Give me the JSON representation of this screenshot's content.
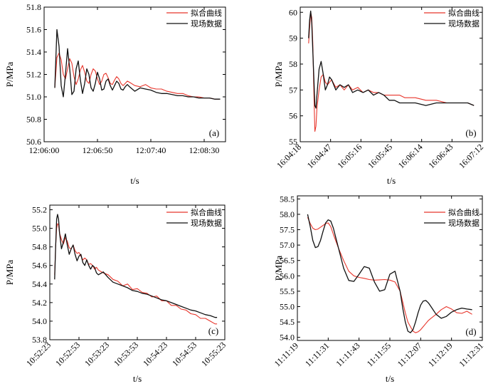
{
  "chart_data": [
    {
      "type": "line",
      "panel_label": "(a)",
      "xlabel": "t/s",
      "ylabel": "P/MPa",
      "x_ticks": [
        "12:06:00",
        "12:06:50",
        "12:07:40",
        "12:08:30"
      ],
      "x_tick_seconds": [
        0,
        50,
        100,
        150
      ],
      "xlim_seconds": [
        0,
        170
      ],
      "y_ticks": [
        "50.6",
        "50.8",
        "51.0",
        "51.2",
        "51.4",
        "51.6",
        "51.8"
      ],
      "ylim": [
        50.6,
        51.8
      ],
      "legend": "top-right",
      "series": [
        {
          "name": "拟合曲线",
          "color": "#e8362c",
          "x_seconds": [
            10,
            12,
            14,
            16,
            18,
            20,
            22,
            24,
            26,
            28,
            30,
            32,
            34,
            36,
            38,
            40,
            42,
            44,
            46,
            48,
            50,
            52,
            54,
            56,
            58,
            60,
            62,
            64,
            66,
            68,
            70,
            72,
            74,
            76,
            78,
            80,
            85,
            90,
            95,
            100,
            105,
            110,
            115,
            120,
            125,
            130,
            135,
            140,
            145,
            150,
            155,
            160,
            165
          ],
          "values": [
            51.08,
            51.35,
            51.39,
            51.33,
            51.2,
            51.16,
            51.25,
            51.34,
            51.3,
            51.18,
            51.11,
            51.16,
            51.24,
            51.28,
            51.22,
            51.14,
            51.12,
            51.2,
            51.25,
            51.23,
            51.16,
            51.11,
            51.14,
            51.2,
            51.21,
            51.17,
            51.12,
            51.11,
            51.15,
            51.18,
            51.16,
            51.12,
            51.1,
            51.12,
            51.14,
            51.13,
            51.1,
            51.09,
            51.11,
            51.08,
            51.07,
            51.07,
            51.05,
            51.04,
            51.03,
            51.03,
            51.01,
            51.0,
            51.0,
            50.99,
            50.99,
            50.98,
            50.98
          ]
        },
        {
          "name": "现场数据",
          "color": "#111111",
          "x_seconds": [
            10,
            12,
            14,
            16,
            18,
            20,
            22,
            24,
            26,
            28,
            30,
            32,
            34,
            36,
            38,
            40,
            42,
            44,
            46,
            48,
            50,
            52,
            54,
            56,
            58,
            60,
            62,
            64,
            66,
            68,
            70,
            72,
            74,
            76,
            78,
            80,
            85,
            90,
            95,
            100,
            105,
            110,
            115,
            120,
            125,
            130,
            135,
            140,
            145,
            150,
            155,
            160,
            165
          ],
          "values": [
            51.08,
            51.6,
            51.45,
            51.1,
            51.0,
            51.2,
            51.43,
            51.25,
            51.02,
            51.05,
            51.25,
            51.32,
            51.15,
            51.03,
            51.12,
            51.25,
            51.2,
            51.08,
            51.05,
            51.12,
            51.22,
            51.16,
            51.06,
            51.07,
            51.14,
            51.16,
            51.1,
            51.06,
            51.1,
            51.14,
            51.12,
            51.07,
            51.06,
            51.09,
            51.11,
            51.09,
            51.05,
            51.08,
            51.07,
            51.06,
            51.04,
            51.03,
            51.03,
            51.02,
            51.01,
            51.01,
            51.0,
            51.0,
            50.99,
            50.99,
            50.99,
            50.98,
            50.98
          ]
        }
      ]
    },
    {
      "type": "line",
      "panel_label": "(b)",
      "xlabel": "t/s",
      "ylabel": "P/MPa",
      "x_ticks": [
        "16:04:18",
        "16:04:47",
        "16:05:16",
        "16:05:45",
        "16:06:14",
        "16:06:43",
        "16:07:12"
      ],
      "x_tick_seconds": [
        0,
        29,
        58,
        87,
        116,
        145,
        174
      ],
      "xlim_seconds": [
        0,
        174
      ],
      "y_ticks": [
        "55",
        "56",
        "57",
        "58",
        "59",
        "60"
      ],
      "ylim": [
        55,
        60.2
      ],
      "legend": "top-right",
      "series": [
        {
          "name": "拟合曲线",
          "color": "#e8362c",
          "x_seconds": [
            8,
            9,
            10,
            11,
            12,
            13,
            14,
            15,
            16,
            18,
            20,
            22,
            24,
            26,
            28,
            30,
            34,
            38,
            42,
            46,
            50,
            55,
            60,
            65,
            70,
            75,
            80,
            85,
            90,
            95,
            100,
            110,
            120,
            130,
            140,
            150,
            160,
            166
          ],
          "values": [
            58.8,
            59.4,
            60.0,
            59.8,
            58.8,
            57.0,
            55.4,
            55.6,
            56.3,
            57.0,
            57.5,
            57.6,
            57.3,
            57.2,
            57.3,
            57.4,
            57.1,
            57.2,
            57.0,
            57.2,
            57.0,
            57.1,
            56.9,
            57.0,
            56.9,
            56.9,
            56.8,
            56.8,
            56.8,
            56.8,
            56.7,
            56.7,
            56.6,
            56.6,
            56.5,
            56.5,
            56.5,
            56.4
          ]
        },
        {
          "name": "现场数据",
          "color": "#111111",
          "x_seconds": [
            8,
            9,
            10,
            11,
            12,
            13,
            14,
            15,
            16,
            18,
            20,
            22,
            24,
            26,
            28,
            30,
            34,
            38,
            42,
            46,
            50,
            55,
            60,
            65,
            70,
            75,
            80,
            85,
            90,
            95,
            100,
            110,
            120,
            130,
            140,
            150,
            160,
            166
          ],
          "values": [
            59.0,
            59.7,
            60.05,
            59.6,
            58.5,
            57.5,
            56.4,
            56.3,
            56.8,
            57.8,
            58.1,
            57.6,
            57.0,
            57.2,
            57.5,
            57.4,
            57.0,
            57.2,
            57.1,
            57.2,
            56.9,
            57.0,
            56.9,
            57.0,
            56.8,
            56.9,
            56.8,
            56.6,
            56.6,
            56.5,
            56.5,
            56.5,
            56.4,
            56.5,
            56.5,
            56.5,
            56.5,
            56.4
          ]
        }
      ]
    },
    {
      "type": "line",
      "panel_label": "(c)",
      "xlabel": "t/s",
      "ylabel": "P/MPa",
      "x_ticks": [
        "10:52:23",
        "10:52:53",
        "10:53:23",
        "10:53:53",
        "10:54:23",
        "10:54:53",
        "10:55:23"
      ],
      "x_tick_seconds": [
        0,
        30,
        60,
        90,
        120,
        150,
        180
      ],
      "xlim_seconds": [
        0,
        180
      ],
      "y_ticks": [
        "53.8",
        "54.0",
        "54.2",
        "54.4",
        "54.6",
        "54.8",
        "55.0",
        "55.2"
      ],
      "ylim": [
        53.8,
        55.25
      ],
      "legend": "top-right",
      "series": [
        {
          "name": "拟合曲线",
          "color": "#e8362c",
          "x_seconds": [
            5,
            6,
            7,
            8,
            9,
            10,
            12,
            14,
            16,
            18,
            20,
            22,
            24,
            26,
            28,
            30,
            32,
            34,
            36,
            38,
            40,
            42,
            44,
            46,
            48,
            50,
            55,
            60,
            65,
            70,
            75,
            80,
            85,
            90,
            95,
            100,
            105,
            110,
            115,
            120,
            125,
            130,
            135,
            140,
            145,
            150,
            155,
            160,
            165,
            170,
            172
          ],
          "values": [
            54.5,
            54.8,
            55.0,
            55.05,
            55.04,
            54.95,
            54.88,
            54.83,
            54.9,
            54.86,
            54.79,
            54.78,
            54.82,
            54.76,
            54.73,
            54.74,
            54.7,
            54.66,
            54.68,
            54.66,
            54.61,
            54.62,
            54.6,
            54.56,
            54.58,
            54.55,
            54.52,
            54.5,
            54.45,
            54.43,
            54.38,
            54.4,
            54.34,
            54.35,
            54.31,
            54.3,
            54.26,
            54.27,
            54.22,
            54.22,
            54.17,
            54.17,
            54.13,
            54.12,
            54.08,
            54.07,
            54.03,
            54.03,
            54.0,
            53.97,
            53.97
          ]
        },
        {
          "name": "现场数据",
          "color": "#111111",
          "x_seconds": [
            5,
            6,
            7,
            8,
            9,
            10,
            12,
            14,
            16,
            18,
            20,
            22,
            24,
            26,
            28,
            30,
            32,
            34,
            36,
            38,
            40,
            42,
            44,
            46,
            48,
            50,
            55,
            60,
            65,
            70,
            75,
            80,
            85,
            90,
            95,
            100,
            105,
            110,
            115,
            120,
            125,
            130,
            135,
            140,
            145,
            150,
            155,
            160,
            165,
            170,
            172
          ],
          "values": [
            54.45,
            54.8,
            55.1,
            55.15,
            55.1,
            54.95,
            54.78,
            54.85,
            54.94,
            54.82,
            54.72,
            54.78,
            54.82,
            54.72,
            54.65,
            54.7,
            54.72,
            54.63,
            54.6,
            54.66,
            54.6,
            54.56,
            54.6,
            54.58,
            54.52,
            54.5,
            54.53,
            54.47,
            54.42,
            54.4,
            54.38,
            54.36,
            54.33,
            54.32,
            54.3,
            54.29,
            54.27,
            54.25,
            54.23,
            54.22,
            54.2,
            54.18,
            54.16,
            54.14,
            54.12,
            54.11,
            54.09,
            54.07,
            54.06,
            54.04,
            54.04
          ]
        }
      ]
    },
    {
      "type": "line",
      "panel_label": "(d)",
      "xlabel": "t/s",
      "ylabel": "P/MPa",
      "x_ticks": [
        "11:11:19",
        "11:11:31",
        "11:11:43",
        "11:11:55",
        "11:12:07",
        "11:12:19",
        "11:12:31"
      ],
      "x_tick_seconds": [
        0,
        12,
        24,
        36,
        48,
        60,
        72
      ],
      "xlim_seconds": [
        0,
        72
      ],
      "y_ticks": [
        "54.0",
        "54.5",
        "55.0",
        "55.5",
        "56.0",
        "56.5",
        "57.0",
        "57.5",
        "58.0",
        "58.5"
      ],
      "ylim": [
        53.9,
        58.6
      ],
      "legend": "top-right",
      "series": [
        {
          "name": "拟合曲线",
          "color": "#e8362c",
          "x_seconds": [
            4,
            5,
            6,
            7,
            8,
            9,
            10,
            11,
            12,
            13,
            14,
            16,
            18,
            20,
            22,
            24,
            26,
            28,
            30,
            32,
            34,
            36,
            38,
            40,
            41,
            42,
            43,
            44,
            45,
            46,
            47,
            48,
            49,
            50,
            51,
            52,
            54,
            56,
            58,
            60,
            62,
            64,
            66,
            68
          ],
          "values": [
            57.9,
            57.7,
            57.55,
            57.5,
            57.52,
            57.58,
            57.64,
            57.7,
            57.72,
            57.6,
            57.35,
            56.9,
            56.5,
            56.15,
            56.0,
            55.95,
            55.92,
            55.88,
            55.86,
            55.87,
            55.88,
            55.86,
            55.8,
            55.5,
            55.15,
            54.8,
            54.5,
            54.35,
            54.2,
            54.15,
            54.18,
            54.25,
            54.35,
            54.45,
            54.55,
            54.62,
            54.75,
            54.9,
            55.0,
            54.92,
            54.8,
            54.78,
            54.85,
            54.75
          ]
        },
        {
          "name": "现场数据",
          "color": "#111111",
          "x_seconds": [
            4,
            5,
            6,
            7,
            8,
            9,
            10,
            11,
            12,
            13,
            14,
            16,
            18,
            20,
            22,
            24,
            26,
            28,
            30,
            32,
            34,
            36,
            38,
            40,
            41,
            42,
            43,
            44,
            45,
            46,
            47,
            48,
            49,
            50,
            51,
            52,
            54,
            56,
            58,
            60,
            62,
            64,
            66,
            68
          ],
          "values": [
            58.0,
            57.6,
            57.15,
            56.92,
            56.95,
            57.15,
            57.45,
            57.72,
            57.82,
            57.78,
            57.55,
            56.9,
            56.25,
            55.85,
            55.82,
            56.05,
            56.3,
            56.25,
            55.8,
            55.5,
            55.55,
            56.05,
            56.15,
            55.5,
            54.95,
            54.5,
            54.2,
            54.15,
            54.25,
            54.5,
            54.8,
            55.05,
            55.18,
            55.2,
            55.12,
            55.0,
            54.75,
            54.62,
            54.68,
            54.82,
            54.9,
            54.95,
            54.92,
            54.9
          ]
        }
      ]
    }
  ]
}
